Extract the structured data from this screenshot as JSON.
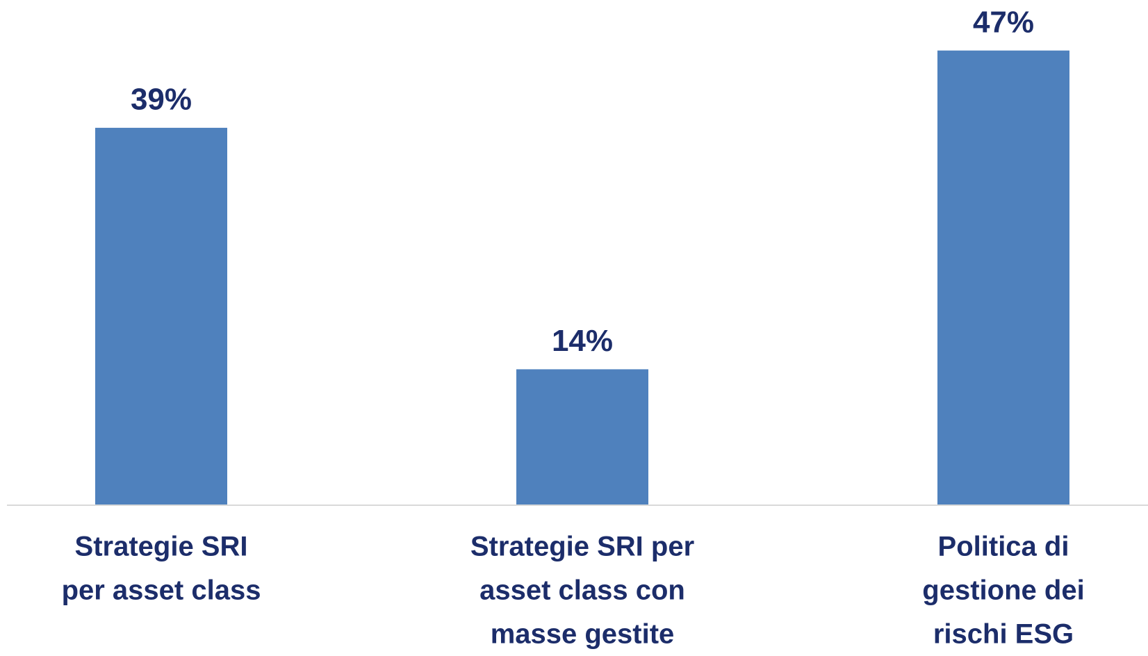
{
  "chart_data": {
    "type": "bar",
    "categories": [
      [
        "Strategie SRI",
        "per asset class"
      ],
      [
        "Strategie SRI per",
        "asset class con",
        "masse gestite"
      ],
      [
        "Politica di",
        "gestione dei",
        "rischi ESG"
      ]
    ],
    "values": [
      39,
      14,
      47
    ],
    "value_labels": [
      "39%",
      "14%",
      "47%"
    ],
    "color": "#4f81bd",
    "ylim": [
      0,
      50
    ]
  }
}
